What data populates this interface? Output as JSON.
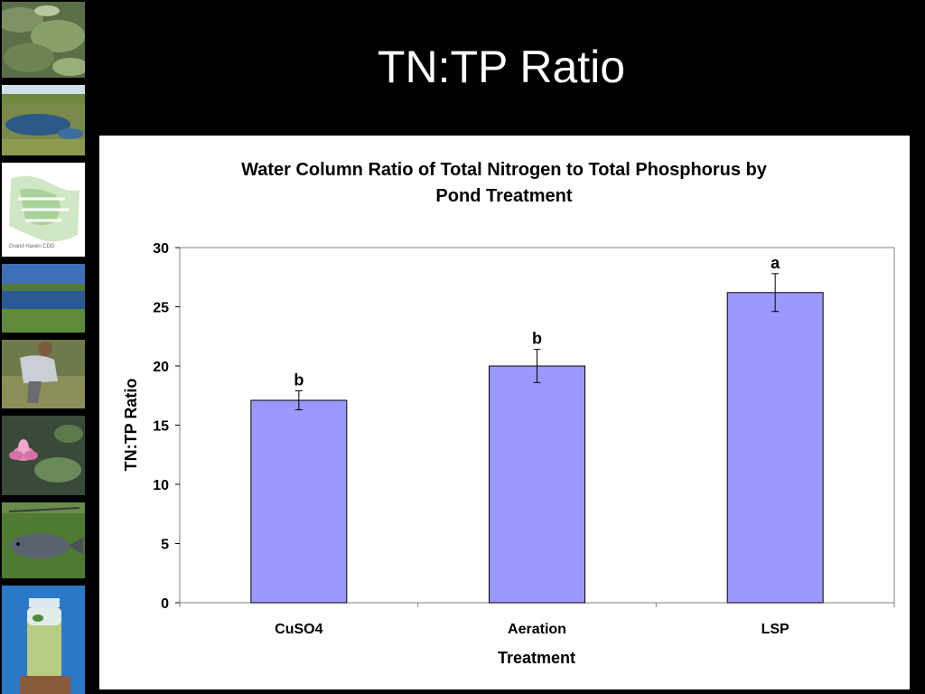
{
  "slide": {
    "title": "TN:TP Ratio"
  },
  "sidebar": {
    "images": [
      "algae-pond-photo",
      "marsh-pond-photo",
      "site-map-image",
      "pond-landscape-photo",
      "field-sampling-photo",
      "water-lily-photo",
      "fish-photo",
      "water-sample-jar-photo"
    ],
    "map_caption": "Grand Haven CDD"
  },
  "chart_data": {
    "type": "bar",
    "title": "Water Column Ratio of Total Nitrogen to Total Phosphorus by Pond Treatment",
    "title_lines": [
      "Water Column Ratio of Total Nitrogen to Total Phosphorus by",
      "Pond Treatment"
    ],
    "xlabel": "Treatment",
    "ylabel": "TN:TP Ratio",
    "categories": [
      "CuSO4",
      "Aeration",
      "LSP"
    ],
    "values": [
      17.1,
      20.0,
      26.2
    ],
    "error": [
      0.8,
      1.4,
      1.6
    ],
    "significance_labels": [
      "b",
      "b",
      "a"
    ],
    "ylim": [
      0,
      30
    ],
    "yticks": [
      0,
      5,
      10,
      15,
      20,
      25,
      30
    ],
    "grid": false,
    "legend": "none",
    "colors": {
      "bar_fill": "#9999ff",
      "bar_stroke": "#000000",
      "axis": "#808080",
      "slide_background": "#000000",
      "panel_background": "#ffffff"
    }
  }
}
